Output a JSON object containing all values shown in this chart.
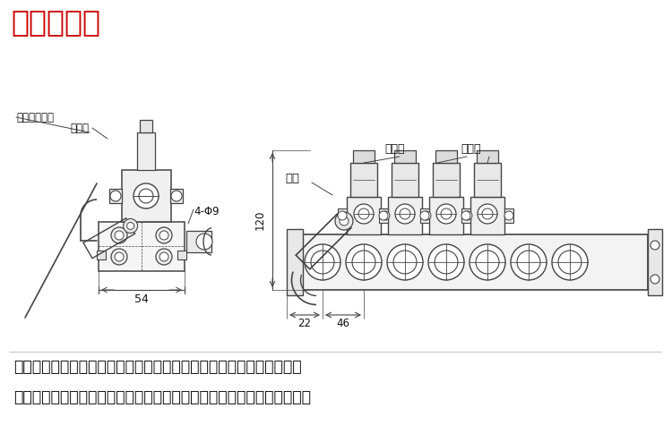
{
  "title": "产品机械图",
  "title_color": "#cc0000",
  "title_fontsize": 26,
  "bg_color": "#ffffff",
  "text_color": "#111111",
  "line_color": "#444444",
  "desc_line1": "气动组合开关用于将罐车上的气动阀进行集中化控制，包括油气回收阀",
  "desc_line2": "海底阀等一系列的气动阀门，实现快速开启关闭，并可进行远程紧急关闭",
  "label_jinji": "接紧急排气阀",
  "label_jinqi": "进气口",
  "label_phi": "4-Φ9",
  "label_dang": "挡块",
  "label_zhu": "主控阀",
  "label_zi": "子控阀",
  "dim_54": "54",
  "dim_22": "22",
  "dim_46": "46",
  "dim_120": "120"
}
